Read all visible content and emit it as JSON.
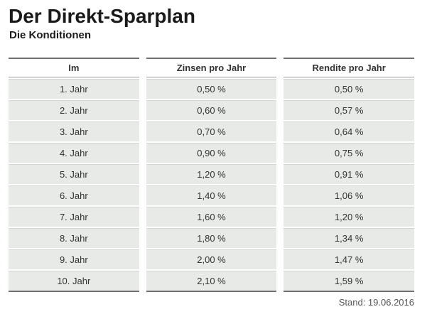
{
  "page": {
    "title": "Der Direkt-Sparplan",
    "subtitle": "Die Konditionen",
    "footer": "Stand: 19.06.2016"
  },
  "table": {
    "headers": [
      "Im",
      "Zinsen pro Jahr",
      "Rendite pro Jahr"
    ],
    "rows": [
      [
        "1. Jahr",
        "0,50 %",
        "0,50 %"
      ],
      [
        "2. Jahr",
        "0,60 %",
        "0,57 %"
      ],
      [
        "3. Jahr",
        "0,70 %",
        "0,64 %"
      ],
      [
        "4. Jahr",
        "0,90 %",
        "0,75 %"
      ],
      [
        "5. Jahr",
        "1,20 %",
        "0,91 %"
      ],
      [
        "6. Jahr",
        "1,40 %",
        "1,06 %"
      ],
      [
        "7. Jahr",
        "1,60 %",
        "1,20 %"
      ],
      [
        "8. Jahr",
        "1,80 %",
        "1,34 %"
      ],
      [
        "9. Jahr",
        "2,00 %",
        "1,47 %"
      ],
      [
        "10. Jahr",
        "2,10 %",
        "1,59 %"
      ]
    ]
  },
  "colors": {
    "row_background": "#e8eae8",
    "dark_border": "#707070",
    "header_separator": "#9c9c9c",
    "cell_text": "#333333",
    "footer_text": "#555555"
  },
  "chart_data": {
    "type": "table",
    "title": "Der Direkt-Sparplan",
    "subtitle": "Die Konditionen",
    "columns": [
      "Im",
      "Zinsen pro Jahr",
      "Rendite pro Jahr"
    ],
    "rows": [
      [
        "1. Jahr",
        "0,50 %",
        "0,50 %"
      ],
      [
        "2. Jahr",
        "0,60 %",
        "0,57 %"
      ],
      [
        "3. Jahr",
        "0,70 %",
        "0,64 %"
      ],
      [
        "4. Jahr",
        "0,90 %",
        "0,75 %"
      ],
      [
        "5. Jahr",
        "1,20 %",
        "0,91 %"
      ],
      [
        "6. Jahr",
        "1,40 %",
        "1,06 %"
      ],
      [
        "7. Jahr",
        "1,60 %",
        "1,20 %"
      ],
      [
        "8. Jahr",
        "1,80 %",
        "1,34 %"
      ],
      [
        "9. Jahr",
        "2,00 %",
        "1,47 %"
      ],
      [
        "10. Jahr",
        "2,10 %",
        "1,59 %"
      ]
    ],
    "numeric": {
      "jahr": [
        1,
        2,
        3,
        4,
        5,
        6,
        7,
        8,
        9,
        10
      ],
      "zinsen_pro_jahr_pct": [
        0.5,
        0.6,
        0.7,
        0.9,
        1.2,
        1.4,
        1.6,
        1.8,
        2.0,
        2.1
      ],
      "rendite_pro_jahr_pct": [
        0.5,
        0.57,
        0.64,
        0.75,
        0.91,
        1.06,
        1.2,
        1.34,
        1.47,
        1.59
      ]
    },
    "stand": "19.06.2016"
  }
}
